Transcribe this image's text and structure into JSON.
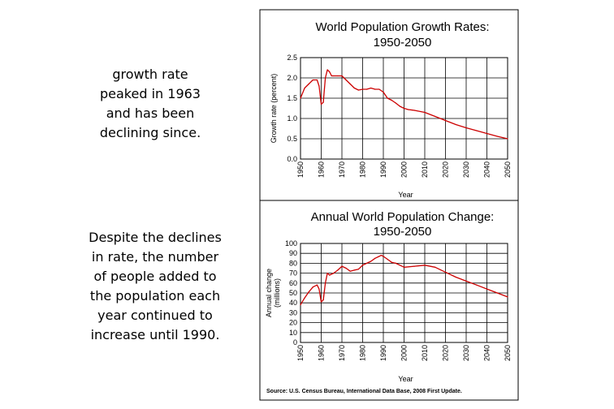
{
  "notes": {
    "growth": [
      "growth rate",
      "peaked in 1963",
      "and has been",
      "declining since."
    ],
    "change": [
      "Despite the declines",
      "in rate, the number",
      "of people added to",
      "the population each",
      "year continued to",
      "increase until 1990."
    ]
  },
  "source": "Source: U.S. Census Bureau, International Data Base, 2008 First Update.",
  "colors": {
    "line": "#cc0000",
    "grid": "#000000",
    "frame": "#000000"
  },
  "chart_data": [
    {
      "type": "line",
      "title": [
        "World Population Growth Rates:",
        "1950-2050"
      ],
      "xlabel": "Year",
      "ylabel": "Growth rate (percent)",
      "xlim": [
        1950,
        2050
      ],
      "ylim": [
        0,
        2.5
      ],
      "yticks": [
        0.0,
        0.5,
        1.0,
        1.5,
        2.0,
        2.5
      ],
      "ytick_labels": [
        "0.0",
        "0.5",
        "1.0",
        "1.5",
        "2.0",
        "2.5"
      ],
      "xticks": [
        1950,
        1960,
        1970,
        1980,
        1990,
        2000,
        2010,
        2020,
        2030,
        2040,
        2050
      ],
      "xtick_labels": [
        "1950",
        "1960",
        "1970",
        "1980",
        "1990",
        "2000",
        "2010",
        "2020",
        "2030",
        "2040",
        "2050"
      ],
      "grid": true,
      "series": [
        {
          "name": "Growth rate",
          "x": [
            1950,
            1952,
            1954,
            1956,
            1958,
            1959,
            1960,
            1961,
            1962,
            1963,
            1964,
            1965,
            1966,
            1968,
            1970,
            1972,
            1974,
            1976,
            1978,
            1980,
            1982,
            1984,
            1986,
            1988,
            1990,
            1992,
            1994,
            1996,
            1998,
            2000,
            2002,
            2005,
            2010,
            2015,
            2020,
            2025,
            2030,
            2035,
            2040,
            2045,
            2050
          ],
          "values": [
            1.5,
            1.75,
            1.85,
            1.95,
            1.95,
            1.8,
            1.35,
            1.4,
            2.0,
            2.2,
            2.15,
            2.05,
            2.05,
            2.05,
            2.05,
            1.95,
            1.85,
            1.75,
            1.7,
            1.72,
            1.72,
            1.75,
            1.72,
            1.72,
            1.65,
            1.5,
            1.45,
            1.38,
            1.3,
            1.25,
            1.22,
            1.2,
            1.15,
            1.05,
            0.95,
            0.85,
            0.77,
            0.7,
            0.63,
            0.56,
            0.5
          ]
        }
      ]
    },
    {
      "type": "line",
      "title": [
        "Annual World Population Change:",
        "1950-2050"
      ],
      "xlabel": "Year",
      "ylabel": "Annual change (millions)",
      "xlim": [
        1950,
        2050
      ],
      "ylim": [
        0,
        100
      ],
      "yticks": [
        0,
        10,
        20,
        30,
        40,
        50,
        60,
        70,
        80,
        90,
        100
      ],
      "ytick_labels": [
        "0",
        "10",
        "20",
        "30",
        "40",
        "50",
        "60",
        "70",
        "80",
        "90",
        "100"
      ],
      "xticks": [
        1950,
        1960,
        1970,
        1980,
        1990,
        2000,
        2010,
        2020,
        2030,
        2040,
        2050
      ],
      "xtick_labels": [
        "1950",
        "1960",
        "1970",
        "1980",
        "1990",
        "2000",
        "2010",
        "2020",
        "2030",
        "2040",
        "2050"
      ],
      "grid": true,
      "series": [
        {
          "name": "Annual change",
          "x": [
            1950,
            1952,
            1954,
            1956,
            1958,
            1959,
            1960,
            1961,
            1962,
            1963,
            1964,
            1966,
            1968,
            1970,
            1972,
            1974,
            1976,
            1978,
            1980,
            1982,
            1984,
            1986,
            1988,
            1989,
            1990,
            1992,
            1994,
            1996,
            1998,
            2000,
            2005,
            2010,
            2015,
            2020,
            2025,
            2030,
            2035,
            2040,
            2045,
            2050
          ],
          "values": [
            38,
            45,
            51,
            56,
            58,
            54,
            41,
            43,
            60,
            70,
            68,
            70,
            73,
            77,
            75,
            72,
            73,
            74,
            78,
            80,
            82,
            85,
            87,
            88,
            87,
            84,
            81,
            80,
            78,
            76,
            77,
            78,
            76,
            71,
            66,
            62,
            58,
            54,
            50,
            46
          ]
        }
      ]
    }
  ]
}
